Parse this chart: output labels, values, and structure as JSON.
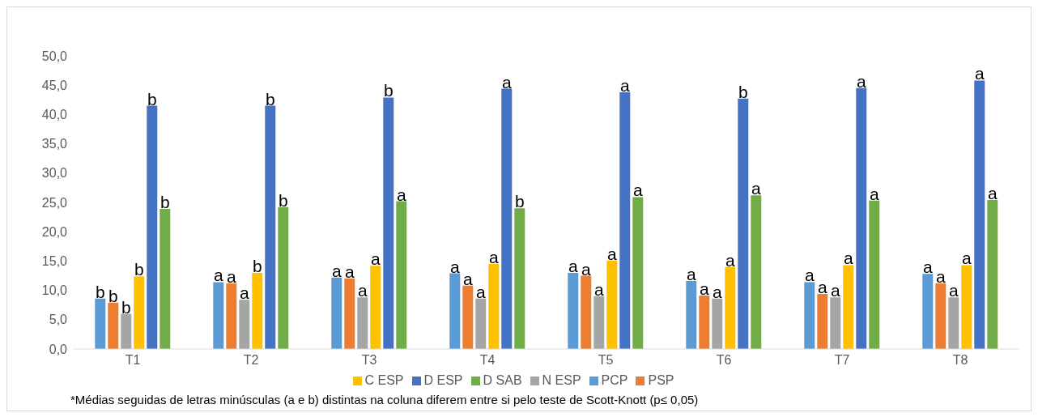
{
  "chart_data": {
    "type": "bar",
    "categories": [
      "T1",
      "T2",
      "T3",
      "T4",
      "T5",
      "T6",
      "T7",
      "T8"
    ],
    "series": [
      {
        "name": "PCP",
        "color": "#5b9bd5",
        "values": [
          8.6,
          11.4,
          12.2,
          12.9,
          13.0,
          11.6,
          11.4,
          12.8
        ],
        "value_labels": [
          "b",
          "a",
          "a",
          "a",
          "a",
          "a",
          "a",
          "a"
        ]
      },
      {
        "name": "PSP",
        "color": "#ed7d31",
        "values": [
          7.9,
          11.2,
          12.0,
          10.8,
          12.5,
          9.1,
          9.4,
          11.2
        ],
        "value_labels": [
          "b",
          "a",
          "a",
          "a",
          "a",
          "a",
          "a",
          "a"
        ]
      },
      {
        "name": "N ESP",
        "color": "#a5a5a5",
        "values": [
          6.0,
          8.4,
          8.8,
          8.6,
          9.0,
          8.6,
          8.8,
          8.8
        ],
        "value_labels": [
          "b",
          "a",
          "a",
          "a",
          "a",
          "a",
          "a",
          "a"
        ]
      },
      {
        "name": "C ESP",
        "color": "#ffc000",
        "values": [
          12.4,
          13.0,
          14.2,
          14.5,
          15.1,
          14.0,
          14.3,
          14.3
        ],
        "value_labels": [
          "b",
          "b",
          "a",
          "a",
          "a",
          "a",
          "a",
          "a"
        ]
      },
      {
        "name": "D ESP",
        "color": "#4472c4",
        "values": [
          41.5,
          41.5,
          42.9,
          44.4,
          43.8,
          42.7,
          44.5,
          45.8
        ],
        "value_labels": [
          "b",
          "b",
          "b",
          "a",
          "a",
          "b",
          "a",
          "a"
        ]
      },
      {
        "name": "D SAB",
        "color": "#70ad47",
        "values": [
          23.9,
          24.2,
          25.2,
          24.0,
          25.9,
          26.2,
          25.3,
          25.4
        ],
        "value_labels": [
          "b",
          "b",
          "a",
          "b",
          "a",
          "a",
          "a",
          "a"
        ]
      }
    ],
    "ylim": [
      0,
      50
    ],
    "yticks": [
      {
        "value": 0,
        "label": "0,0"
      },
      {
        "value": 5,
        "label": "5,0"
      },
      {
        "value": 10,
        "label": "10,0"
      },
      {
        "value": 15,
        "label": "15,0"
      },
      {
        "value": 20,
        "label": "20,0"
      },
      {
        "value": 25,
        "label": "25,0"
      },
      {
        "value": 30,
        "label": "30,0"
      },
      {
        "value": 35,
        "label": "35,0"
      },
      {
        "value": 40,
        "label": "40,0"
      },
      {
        "value": 45,
        "label": "45,0"
      },
      {
        "value": 50,
        "label": "50,0"
      }
    ],
    "grid": false,
    "legend": "bottom",
    "annotations": [
      "*Médias seguidas de letras minúsculas (a e b) distintas na coluna diferem entre si pelo teste de Scott-Knott (p≤ 0,05)"
    ]
  }
}
